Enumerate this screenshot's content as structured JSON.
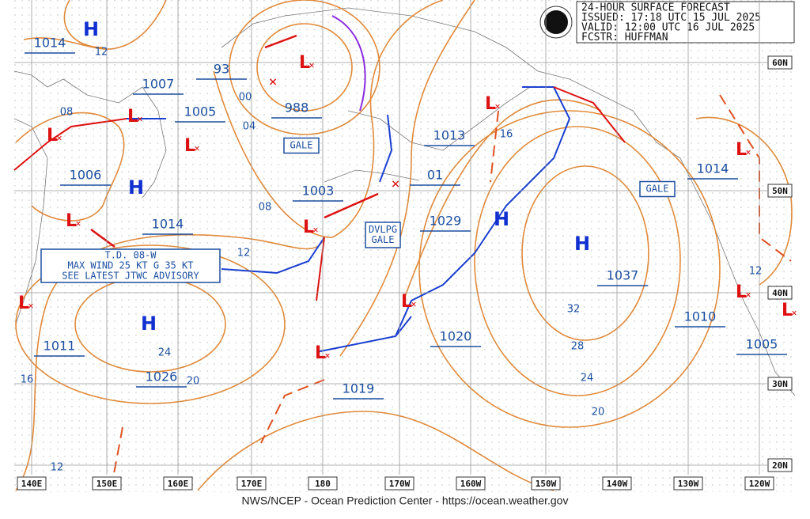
{
  "header": {
    "lines": [
      "24-HOUR SURFACE FORECAST",
      "ISSUED: 17:18 UTC 15 JUL 2025",
      "VALID:  12:00 UTC 16 JUL 2025",
      "FCSTR:  HUFFMAN"
    ]
  },
  "footer": "NWS/NCEP - Ocean Prediction Center - https://ocean.weather.gov",
  "longitudes": [
    "140E",
    "150E",
    "160E",
    "170E",
    "180",
    "170W",
    "160W",
    "150W",
    "140W",
    "130W",
    "120W"
  ],
  "latitudes": [
    "60N",
    "50N",
    "40N",
    "30N",
    "20N"
  ],
  "pressure_labels": [
    "1014",
    "1007",
    "93",
    "988",
    "1005",
    "1006",
    "1003",
    "1013",
    "01",
    "1029",
    "1014",
    "1037",
    "1010",
    "1020",
    "1011",
    "1026",
    "1019",
    "1014",
    "1005"
  ],
  "contour_labels": [
    "12",
    "08",
    "00",
    "04",
    "08",
    "12",
    "16",
    "32",
    "28",
    "24",
    "24",
    "20",
    "20",
    "16",
    "12",
    "12"
  ],
  "gale_labels": [
    [
      "GALE"
    ],
    [
      "GALE"
    ],
    [
      "DVLPG",
      "GALE"
    ]
  ],
  "advisory": [
    "T.D. 08-W",
    "MAX WIND 25 KT G 35 KT",
    "SEE LATEST JTWC ADVISORY"
  ],
  "highs": [
    "H",
    "H",
    "H",
    "H",
    "H"
  ],
  "lows": [
    "L",
    "L",
    "L",
    "L",
    "L",
    "L",
    "L",
    "L",
    "L",
    "L",
    "L",
    "L",
    "L"
  ]
}
